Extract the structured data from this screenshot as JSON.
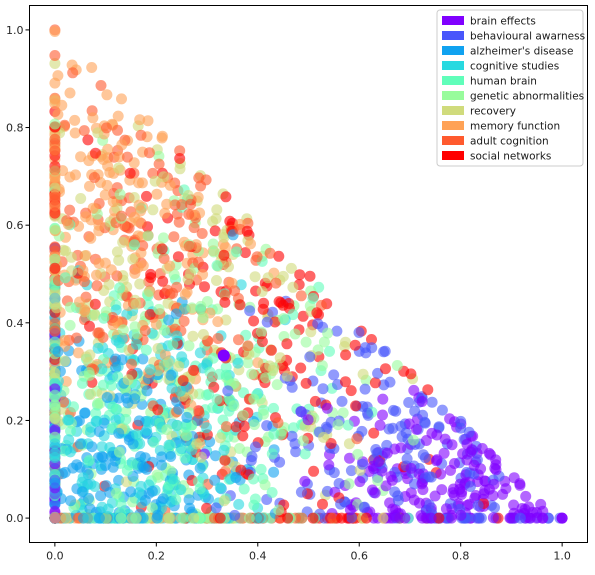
{
  "chart_data": {
    "type": "scatter",
    "title": "",
    "xlabel": "",
    "ylabel": "",
    "xlim": [
      -0.05,
      1.05
    ],
    "ylim": [
      -0.05,
      1.05
    ],
    "x_ticks": [
      "0.0",
      "0.2",
      "0.4",
      "0.6",
      "0.8",
      "1.0"
    ],
    "y_ticks": [
      "0.0",
      "0.2",
      "0.4",
      "0.6",
      "0.8",
      "1.0"
    ],
    "grid": false,
    "legend_position": "top-right",
    "point_alpha": 0.6,
    "description_of_region": "points fill the simplex triangle with vertices (0,0), (1,0), (0,1)",
    "series": [
      {
        "name": "brain effects",
        "color": "#8000ff",
        "center": [
          0.82,
          0.07
        ],
        "spread": 0.13
      },
      {
        "name": "behavioural awarness",
        "color": "#4856fb",
        "center": [
          0.72,
          0.16
        ],
        "spread": 0.16
      },
      {
        "name": "alzheimer's disease",
        "color": "#10a2f0",
        "center": [
          0.12,
          0.1
        ],
        "spread": 0.14
      },
      {
        "name": "cognitive studies",
        "color": "#28d9e0",
        "center": [
          0.14,
          0.16
        ],
        "spread": 0.16
      },
      {
        "name": "human brain",
        "color": "#60feba",
        "center": [
          0.22,
          0.22
        ],
        "spread": 0.18
      },
      {
        "name": "genetic abnormalities",
        "color": "#98fc9c",
        "center": [
          0.28,
          0.3
        ],
        "spread": 0.2
      },
      {
        "name": "recovery",
        "color": "#d0db7c",
        "center": [
          0.22,
          0.42
        ],
        "spread": 0.22
      },
      {
        "name": "memory function",
        "color": "#ffa256",
        "center": [
          0.08,
          0.62
        ],
        "spread": 0.18
      },
      {
        "name": "adult cognition",
        "color": "#ff5a2e",
        "center": [
          0.2,
          0.55
        ],
        "spread": 0.22
      },
      {
        "name": "social networks",
        "color": "#ff0000",
        "center": [
          0.45,
          0.42
        ],
        "spread": 0.25
      }
    ],
    "highlight_point": {
      "x": 0.333,
      "y": 0.333,
      "color": "#8000ff"
    }
  }
}
